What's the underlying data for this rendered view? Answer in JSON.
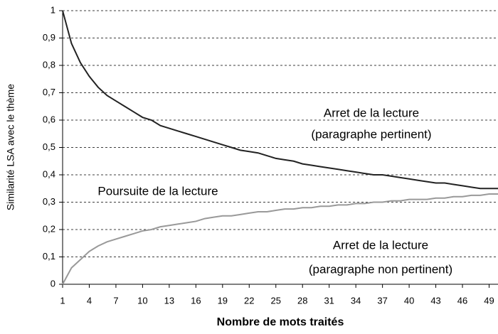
{
  "chart_data": {
    "type": "line",
    "y_label": "Similarité LSA avec le thème",
    "x_label": "Nombre de mots traités",
    "annotations": [
      "Arret de la lecture",
      "(paragraphe pertinent)",
      "Poursuite de la lecture",
      "Arret de la lecture",
      "(paragraphe non pertinent)"
    ],
    "x": [
      1,
      2,
      3,
      4,
      5,
      6,
      7,
      8,
      9,
      10,
      11,
      12,
      13,
      14,
      15,
      16,
      17,
      18,
      19,
      20,
      21,
      22,
      23,
      24,
      25,
      26,
      27,
      28,
      29,
      30,
      31,
      32,
      33,
      34,
      35,
      36,
      37,
      38,
      39,
      40,
      41,
      42,
      43,
      44,
      45,
      46,
      47,
      48,
      49,
      50
    ],
    "series": [
      {
        "color": "#222222",
        "values": [
          1.0,
          0.88,
          0.81,
          0.76,
          0.72,
          0.69,
          0.67,
          0.65,
          0.63,
          0.61,
          0.6,
          0.58,
          0.57,
          0.56,
          0.55,
          0.54,
          0.53,
          0.52,
          0.51,
          0.5,
          0.49,
          0.485,
          0.48,
          0.47,
          0.46,
          0.455,
          0.45,
          0.44,
          0.435,
          0.43,
          0.425,
          0.42,
          0.415,
          0.41,
          0.405,
          0.4,
          0.4,
          0.395,
          0.39,
          0.385,
          0.38,
          0.375,
          0.37,
          0.37,
          0.365,
          0.36,
          0.355,
          0.35,
          0.35,
          0.35
        ]
      },
      {
        "color": "#999999",
        "values": [
          0.0,
          0.06,
          0.09,
          0.12,
          0.14,
          0.155,
          0.165,
          0.175,
          0.185,
          0.195,
          0.2,
          0.21,
          0.215,
          0.22,
          0.225,
          0.23,
          0.24,
          0.245,
          0.25,
          0.25,
          0.255,
          0.26,
          0.265,
          0.265,
          0.27,
          0.275,
          0.275,
          0.28,
          0.28,
          0.285,
          0.285,
          0.29,
          0.29,
          0.295,
          0.295,
          0.3,
          0.3,
          0.305,
          0.305,
          0.31,
          0.31,
          0.31,
          0.315,
          0.315,
          0.32,
          0.32,
          0.325,
          0.325,
          0.33,
          0.33
        ]
      }
    ],
    "xlim": [
      1,
      50
    ],
    "xticks": [
      1,
      4,
      7,
      10,
      13,
      16,
      19,
      22,
      25,
      28,
      31,
      34,
      37,
      40,
      43,
      46,
      49
    ],
    "ylim": [
      0,
      1
    ],
    "yticks": [
      0,
      {
        "value": 0.1,
        "label": "0,1"
      },
      {
        "value": 0.2,
        "label": "0,2"
      },
      {
        "value": 0.3,
        "label": "0,3"
      },
      {
        "value": 0.4,
        "label": "0,4"
      },
      {
        "value": 0.5,
        "label": "0,5"
      },
      {
        "value": 0.6,
        "label": "0,6"
      },
      {
        "value": 0.7,
        "label": "0,7"
      },
      {
        "value": 0.8,
        "label": "0,8"
      },
      {
        "value": 0.9,
        "label": "0,9"
      },
      1
    ],
    "grid": true
  }
}
